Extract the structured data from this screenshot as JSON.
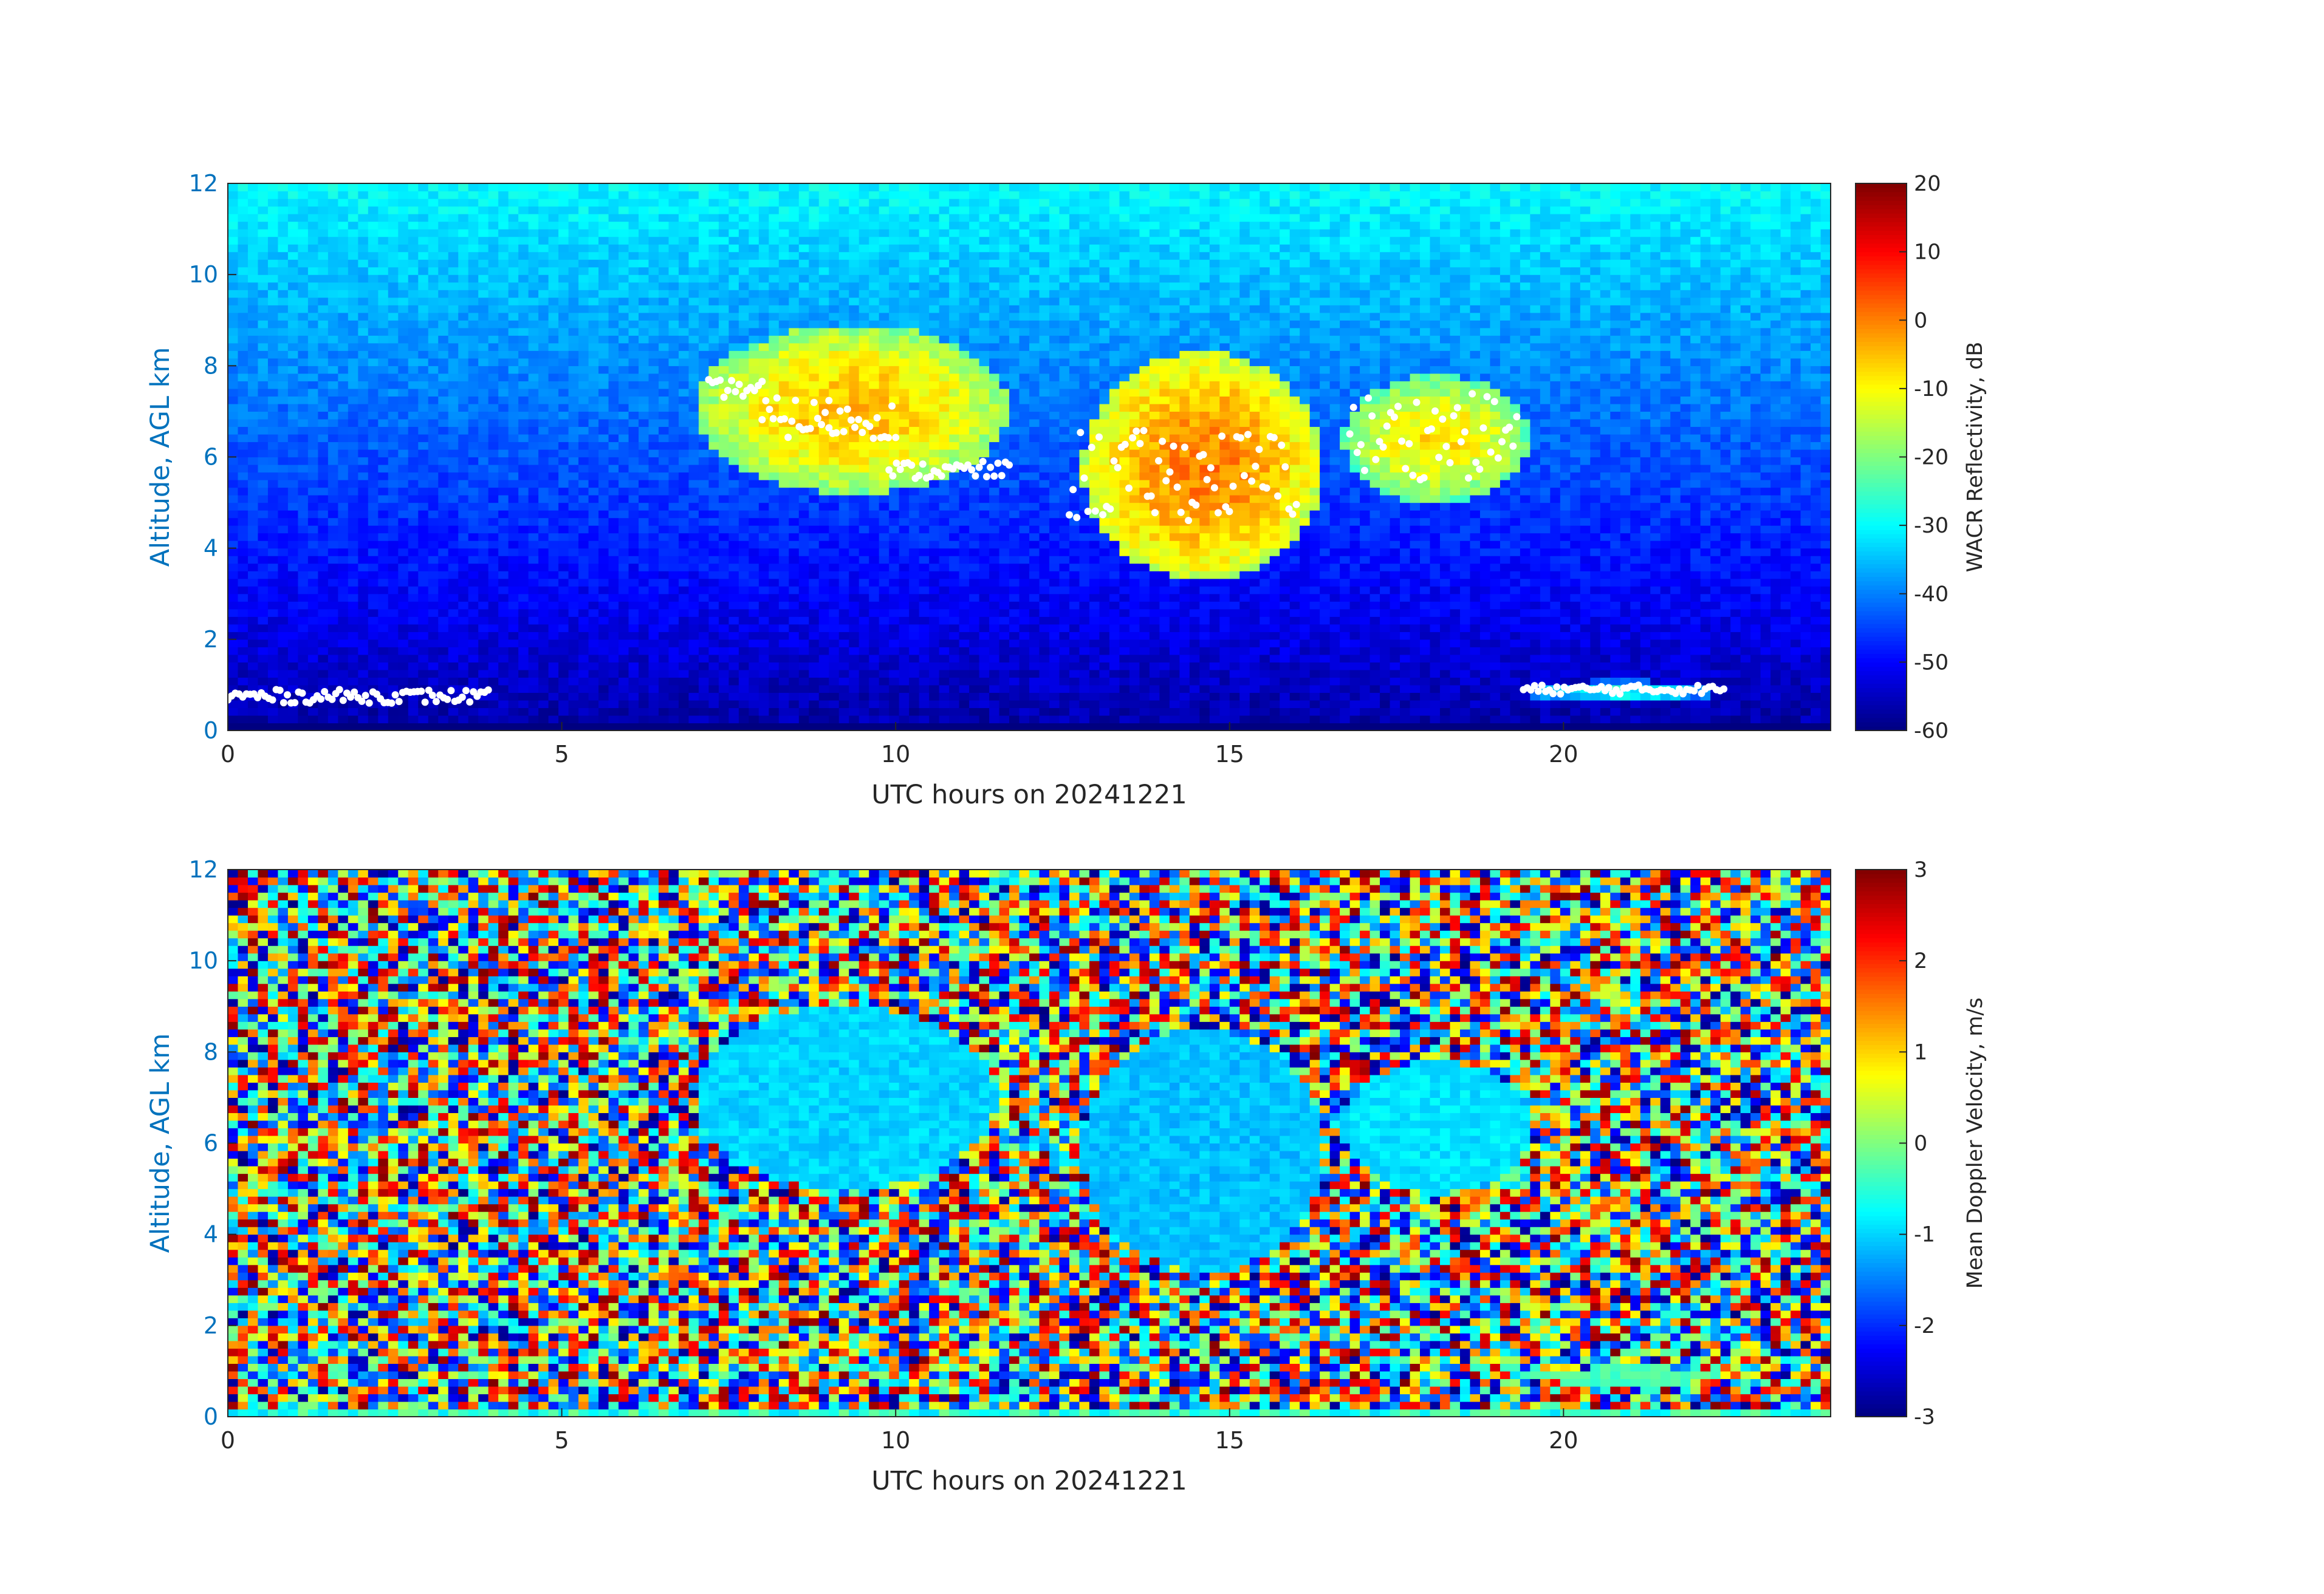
{
  "chart_data": [
    {
      "type": "heatmap",
      "variable": "WACR Reflectivity",
      "xlabel": "UTC hours on 20241221",
      "ylabel": "Altitude, AGL km",
      "xlim": [
        0,
        24
      ],
      "ylim": [
        0,
        12
      ],
      "x_ticks": [
        0,
        5,
        10,
        15,
        20
      ],
      "y_ticks": [
        0,
        2,
        4,
        6,
        8,
        10,
        12
      ],
      "colorbar": {
        "label": "WACR Reflectivity, dB",
        "range": [
          -60,
          20
        ],
        "ticks": [
          20,
          10,
          0,
          -10,
          -20,
          -30,
          -40,
          -50,
          -60
        ],
        "colormap": "jet"
      },
      "background": "noise field from about -55 dB near the surface to about -30 dB at 12 km",
      "cloud_features": [
        {
          "x_range": [
            7.0,
            11.7
          ],
          "altitude_km": [
            5.2,
            8.9
          ],
          "peak_dB": -5
        },
        {
          "x_range": [
            12.8,
            16.4
          ],
          "altitude_km": [
            3.3,
            8.3
          ],
          "peak_dB": 0
        },
        {
          "x_range": [
            16.7,
            19.5
          ],
          "altitude_km": [
            5.0,
            7.8
          ],
          "peak_dB": -8
        },
        {
          "x_range": [
            19.4,
            22.3
          ],
          "altitude_km": [
            0.6,
            1.1
          ],
          "peak_dB": -28
        }
      ],
      "cloud_base_markers": {
        "color": "#ffffff",
        "segments": [
          {
            "x": [
              0.0,
              3.9
            ],
            "altitude_km": [
              0.6,
              0.9
            ]
          },
          {
            "x": [
              7.2,
              8.0
            ],
            "altitude_km": [
              7.3,
              7.7
            ]
          },
          {
            "x": [
              8.0,
              9.0
            ],
            "altitude_km": [
              6.4,
              7.3
            ]
          },
          {
            "x": [
              9.0,
              10.0
            ],
            "altitude_km": [
              6.4,
              7.2
            ]
          },
          {
            "x": [
              9.9,
              11.7
            ],
            "altitude_km": [
              5.5,
              5.9
            ]
          },
          {
            "x": [
              12.6,
              16.0
            ],
            "altitude_km": [
              4.6,
              6.6
            ]
          },
          {
            "x": [
              16.8,
              19.3
            ],
            "altitude_km": [
              5.5,
              7.4
            ]
          },
          {
            "x": [
              19.4,
              22.4
            ],
            "altitude_km": [
              0.8,
              1.0
            ]
          }
        ]
      }
    },
    {
      "type": "heatmap",
      "variable": "Mean Doppler Velocity",
      "xlabel": "UTC hours on 20241221",
      "ylabel": "Altitude, AGL km",
      "xlim": [
        0,
        24
      ],
      "ylim": [
        0,
        12
      ],
      "x_ticks": [
        0,
        5,
        10,
        15,
        20
      ],
      "y_ticks": [
        0,
        2,
        4,
        6,
        8,
        10,
        12
      ],
      "colorbar": {
        "label": "Mean Doppler Velocity, m/s",
        "range": [
          -3,
          3
        ],
        "ticks": [
          3,
          2,
          1,
          0,
          -1,
          -2,
          -3
        ],
        "colormap": "jet"
      },
      "background": "random noise spanning -3 to 3 m/s",
      "cloud_features": [
        {
          "x_range": [
            7.0,
            11.5
          ],
          "altitude_km": [
            5.0,
            9.0
          ],
          "velocity_ms": -1.0
        },
        {
          "x_range": [
            12.8,
            16.4
          ],
          "altitude_km": [
            3.2,
            8.5
          ],
          "velocity_ms": -1.1
        },
        {
          "x_range": [
            16.7,
            19.5
          ],
          "altitude_km": [
            4.9,
            7.8
          ],
          "velocity_ms": -0.9
        },
        {
          "x_range": [
            19.5,
            22.3
          ],
          "altitude_km": [
            0.7,
            1.1
          ],
          "velocity_ms": -0.3
        }
      ]
    }
  ]
}
